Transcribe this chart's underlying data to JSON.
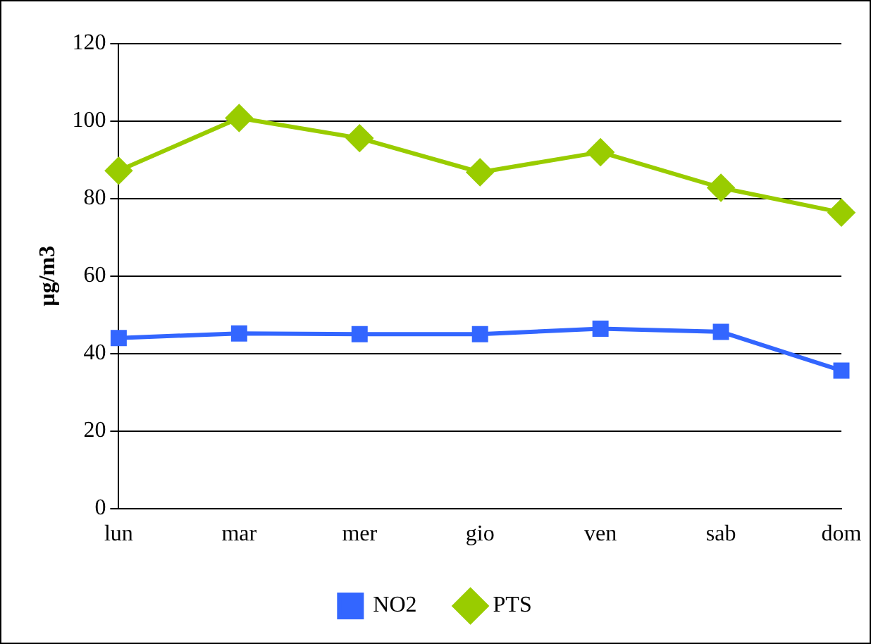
{
  "chart_data": {
    "type": "line",
    "ylabel": "µg/m3",
    "categories": [
      "lun",
      "mar",
      "mer",
      "gio",
      "ven",
      "sab",
      "dom"
    ],
    "series": [
      {
        "name": "NO2",
        "color": "#3366ff",
        "marker": "square",
        "values": [
          44,
          45.2,
          45,
          45,
          46.4,
          45.6,
          35.6
        ]
      },
      {
        "name": "PTS",
        "color": "#99cc00",
        "marker": "diamond",
        "values": [
          87.2,
          100.8,
          95.6,
          86.8,
          92,
          82.8,
          76.4
        ]
      }
    ],
    "ylim": [
      0,
      120
    ],
    "yticks": [
      0,
      20,
      40,
      60,
      80,
      100,
      120
    ],
    "grid": "y",
    "legend": "bottom",
    "line_style": "solid"
  }
}
